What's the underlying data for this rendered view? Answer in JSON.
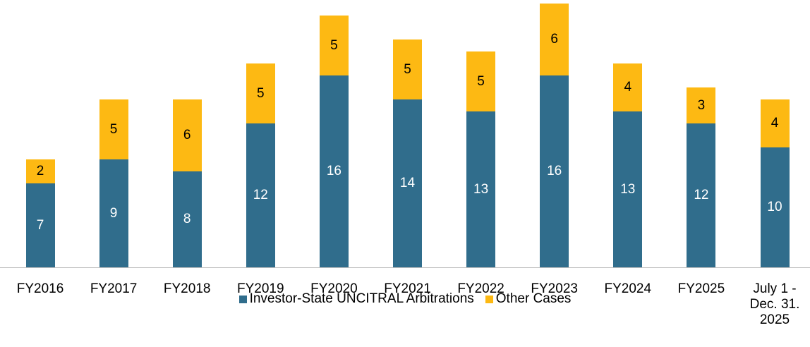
{
  "chart_data": {
    "type": "stacked_bar",
    "categories": [
      "FY2016",
      "FY2017",
      "FY2018",
      "FY2019",
      "FY2020",
      "FY2021",
      "FY2022",
      "FY2023",
      "FY2024",
      "FY2025",
      "July 1 - Dec. 31. 2025"
    ],
    "series": [
      {
        "name": "Investor-State UNCITRAL Arbitrations",
        "color": "#306d8c",
        "values": [
          7,
          9,
          8,
          12,
          16,
          14,
          13,
          16,
          13,
          12,
          10
        ]
      },
      {
        "name": "Other Cases",
        "color": "#fdb913",
        "values": [
          2,
          5,
          6,
          5,
          5,
          5,
          5,
          6,
          4,
          3,
          4
        ]
      }
    ],
    "legend": "bottom"
  }
}
